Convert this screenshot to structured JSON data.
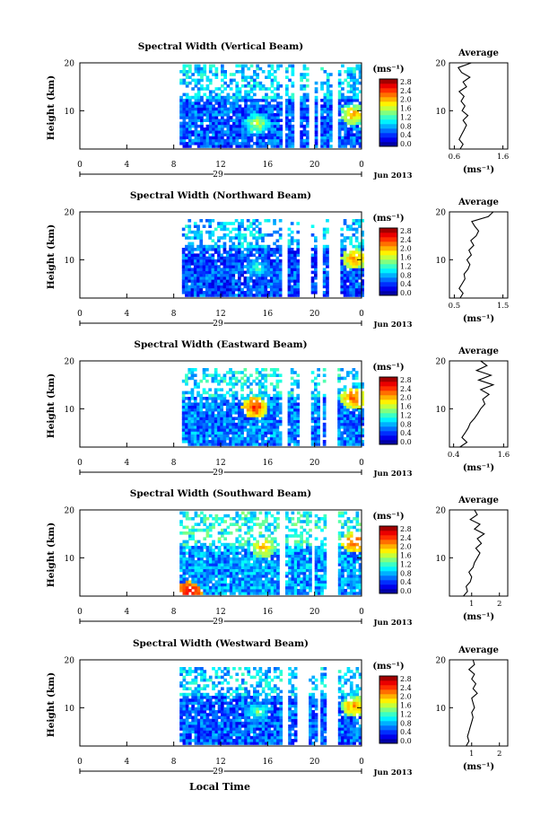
{
  "figure": {
    "xlabel": "Local Time",
    "date_label": "Jun 2013",
    "day_label": "29",
    "colorbar_unit": "(ms⁻¹)",
    "avg_title": "Average",
    "avg_xlabel": "(ms⁻¹)",
    "ylabel": "Height (km)"
  },
  "chart_data": [
    {
      "type": "heatmap",
      "title": "Spectral Width (Vertical Beam)",
      "xlim": [
        0,
        24
      ],
      "ylim": [
        2,
        20
      ],
      "xticks": [
        "0",
        "4",
        "8",
        "12",
        "16",
        "20",
        "0"
      ],
      "yticks": [
        "10",
        "20"
      ],
      "colorbar": {
        "ticks": [
          "2.8",
          "2.4",
          "2.0",
          "1.6",
          "1.2",
          "0.8",
          "0.4",
          "0.0"
        ],
        "range": [
          0,
          3.0
        ]
      },
      "data_start_hour": 8.5,
      "gaps": [
        [
          17.2,
          17.6
        ],
        [
          18.3,
          18.7
        ],
        [
          19.6,
          19.9
        ],
        [
          20.3,
          20.6
        ],
        [
          21.5,
          22.1
        ]
      ],
      "top_km": 19.5,
      "base_value": 0.5,
      "hotspots": [
        {
          "t": 15.0,
          "h": 7,
          "v": 1.8
        },
        {
          "t": 23.2,
          "h": 9,
          "v": 2.2
        }
      ],
      "average": {
        "xticks": [
          "0.6",
          "1.6"
        ],
        "xlim": [
          0.5,
          1.7
        ],
        "height": [
          2,
          3,
          4,
          5,
          6,
          7,
          8,
          9,
          10,
          11,
          12,
          13,
          14,
          15,
          16,
          17,
          18,
          19,
          20
        ],
        "value": [
          0.72,
          0.78,
          0.7,
          0.75,
          0.8,
          0.85,
          0.78,
          0.88,
          0.76,
          0.82,
          0.74,
          0.8,
          0.7,
          0.85,
          0.78,
          0.92,
          0.75,
          0.68,
          0.95
        ]
      }
    },
    {
      "type": "heatmap",
      "title": "Spectral Width (Northward Beam)",
      "xlim": [
        0,
        24
      ],
      "ylim": [
        2,
        20
      ],
      "xticks": [
        "0",
        "4",
        "8",
        "12",
        "16",
        "20",
        "0"
      ],
      "yticks": [
        "10",
        "20"
      ],
      "colorbar": {
        "ticks": [
          "2.8",
          "2.4",
          "2.0",
          "1.6",
          "1.2",
          "0.8",
          "0.4",
          "0.0"
        ],
        "range": [
          0,
          3.0
        ]
      },
      "data_start_hour": 8.7,
      "gaps": [
        [
          17.2,
          17.7
        ],
        [
          18.7,
          19.6
        ],
        [
          20.3,
          20.6
        ],
        [
          21.2,
          22.2
        ]
      ],
      "top_km": 18.0,
      "base_value": 0.45,
      "hotspots": [
        {
          "t": 15.0,
          "h": 8,
          "v": 1.4
        },
        {
          "t": 23.3,
          "h": 10,
          "v": 2.3
        }
      ],
      "average": {
        "xticks": [
          "0.5",
          "1.5"
        ],
        "xlim": [
          0.4,
          1.6
        ],
        "height": [
          2,
          3,
          4,
          5,
          6,
          7,
          8,
          9,
          10,
          11,
          12,
          13,
          14,
          15,
          16,
          17,
          18,
          19,
          20
        ],
        "value": [
          0.62,
          0.68,
          0.6,
          0.66,
          0.72,
          0.7,
          0.78,
          0.82,
          0.76,
          0.85,
          0.8,
          0.9,
          0.84,
          0.95,
          1.0,
          0.92,
          0.86,
          1.2,
          1.3
        ]
      }
    },
    {
      "type": "heatmap",
      "title": "Spectral Width (Eastward Beam)",
      "xlim": [
        0,
        24
      ],
      "ylim": [
        2,
        20
      ],
      "xticks": [
        "0",
        "4",
        "8",
        "12",
        "16",
        "20",
        "0"
      ],
      "yticks": [
        "10",
        "20"
      ],
      "colorbar": {
        "ticks": [
          "2.8",
          "2.4",
          "2.0",
          "1.6",
          "1.2",
          "0.8",
          "0.4",
          "0.0"
        ],
        "range": [
          0,
          3.0
        ]
      },
      "data_start_hour": 8.7,
      "gaps": [
        [
          17.1,
          17.6
        ],
        [
          18.7,
          19.6
        ],
        [
          20.5,
          20.8
        ],
        [
          21.0,
          22.0
        ]
      ],
      "top_km": 18.5,
      "base_value": 0.6,
      "hotspots": [
        {
          "t": 14.8,
          "h": 10,
          "v": 2.6
        },
        {
          "t": 23.2,
          "h": 12,
          "v": 2.5
        }
      ],
      "average": {
        "xticks": [
          "0.4",
          "1.6"
        ],
        "xlim": [
          0.3,
          1.7
        ],
        "height": [
          2,
          3,
          4,
          5,
          6,
          7,
          8,
          9,
          10,
          11,
          12,
          13,
          14,
          15,
          16,
          17,
          18,
          19,
          20
        ],
        "value": [
          0.55,
          0.72,
          0.6,
          0.68,
          0.75,
          0.8,
          0.9,
          0.98,
          1.05,
          1.15,
          1.1,
          1.25,
          1.05,
          1.35,
          1.0,
          1.3,
          0.95,
          1.2,
          1.05
        ]
      }
    },
    {
      "type": "heatmap",
      "title": "Spectral Width (Southward Beam)",
      "xlim": [
        0,
        24
      ],
      "ylim": [
        2,
        20
      ],
      "xticks": [
        "0",
        "4",
        "8",
        "12",
        "16",
        "20",
        "0"
      ],
      "yticks": [
        "10",
        "20"
      ],
      "colorbar": {
        "ticks": [
          "2.8",
          "2.4",
          "2.0",
          "1.6",
          "1.2",
          "0.8",
          "0.4",
          "0.0"
        ],
        "range": [
          0,
          3.0
        ]
      },
      "data_start_hour": 8.5,
      "gaps": [
        [
          17.1,
          17.6
        ],
        [
          19.8,
          20.1
        ],
        [
          21.0,
          22.0
        ]
      ],
      "top_km": 19.5,
      "base_value": 0.7,
      "hotspots": [
        {
          "t": 9.2,
          "h": 2.5,
          "v": 2.9
        },
        {
          "t": 15.5,
          "h": 12,
          "v": 2.2
        },
        {
          "t": 23.3,
          "h": 13,
          "v": 2.5
        }
      ],
      "average": {
        "xticks": [
          "1",
          "2"
        ],
        "xlim": [
          0.2,
          2.3
        ],
        "height": [
          2,
          3,
          4,
          5,
          6,
          7,
          8,
          9,
          10,
          11,
          12,
          13,
          14,
          15,
          16,
          17,
          18,
          19,
          20
        ],
        "value": [
          0.7,
          0.85,
          0.8,
          0.95,
          1.0,
          0.9,
          1.05,
          1.1,
          1.2,
          1.3,
          1.15,
          1.35,
          1.2,
          1.45,
          1.1,
          1.3,
          0.95,
          1.2,
          1.1
        ]
      }
    },
    {
      "type": "heatmap",
      "title": "Spectral Width (Westward Beam)",
      "xlim": [
        0,
        24
      ],
      "ylim": [
        2,
        20
      ],
      "xticks": [
        "0",
        "4",
        "8",
        "12",
        "16",
        "20",
        "0"
      ],
      "yticks": [
        "10",
        "20"
      ],
      "colorbar": {
        "ticks": [
          "2.8",
          "2.4",
          "2.0",
          "1.6",
          "1.2",
          "0.8",
          "0.4",
          "0.0"
        ],
        "range": [
          0,
          3.0
        ]
      },
      "data_start_hour": 8.5,
      "gaps": [
        [
          17.2,
          17.7
        ],
        [
          18.6,
          19.6
        ],
        [
          20.3,
          20.6
        ],
        [
          21.0,
          22.1
        ]
      ],
      "top_km": 18.0,
      "base_value": 0.5,
      "hotspots": [
        {
          "t": 15.0,
          "h": 9,
          "v": 1.5
        },
        {
          "t": 23.3,
          "h": 10,
          "v": 2.3
        }
      ],
      "average": {
        "xticks": [
          "1",
          "2"
        ],
        "xlim": [
          0.2,
          2.3
        ],
        "height": [
          2,
          3,
          4,
          5,
          6,
          7,
          8,
          9,
          10,
          11,
          12,
          13,
          14,
          15,
          16,
          17,
          18,
          19,
          20
        ],
        "value": [
          0.8,
          0.9,
          0.85,
          0.9,
          0.95,
          1.0,
          1.05,
          1.0,
          1.1,
          1.05,
          1.0,
          1.2,
          1.05,
          1.15,
          1.0,
          1.1,
          0.9,
          1.1,
          1.05
        ]
      }
    }
  ]
}
